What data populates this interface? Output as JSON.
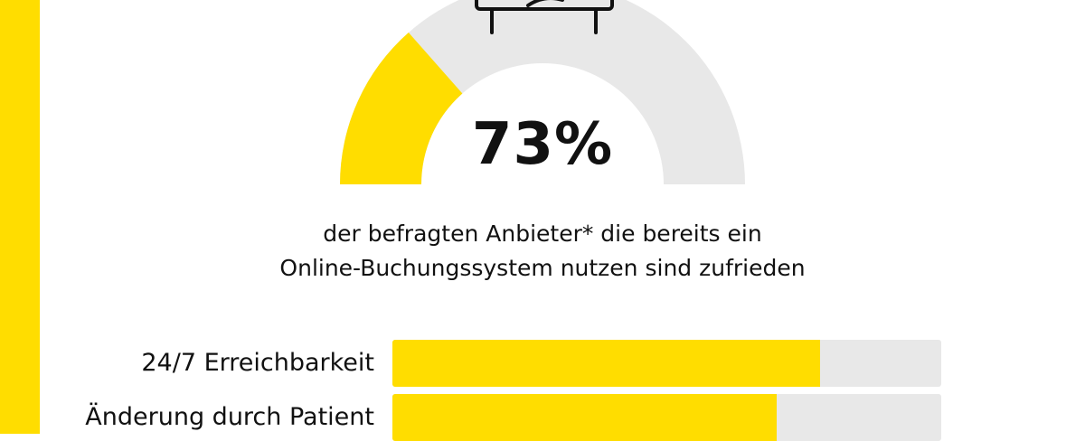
{
  "colors": {
    "accent": "#ffdd00",
    "track": "#e8e8e8",
    "ink": "#111111"
  },
  "gauge": {
    "value_label": "73%",
    "caption_lines": [
      "der befragten Anbieter* die bereits ein",
      "Online-Buchungssystem nutzen sind zufrieden"
    ],
    "icon": "computer-monitor-icon"
  },
  "chart_data": [
    {
      "type": "gauge",
      "value": 73,
      "range": [
        0,
        100
      ],
      "value_label": "73%",
      "caption": "der befragten Anbieter* die bereits ein Online-Buchungssystem nutzen sind zufrieden"
    },
    {
      "type": "bar",
      "orientation": "horizontal",
      "categories": [
        "24/7 Erreichbarkeit",
        "Änderung durch Patient"
      ],
      "values": [
        78,
        70
      ],
      "xlim": [
        0,
        100
      ]
    }
  ]
}
